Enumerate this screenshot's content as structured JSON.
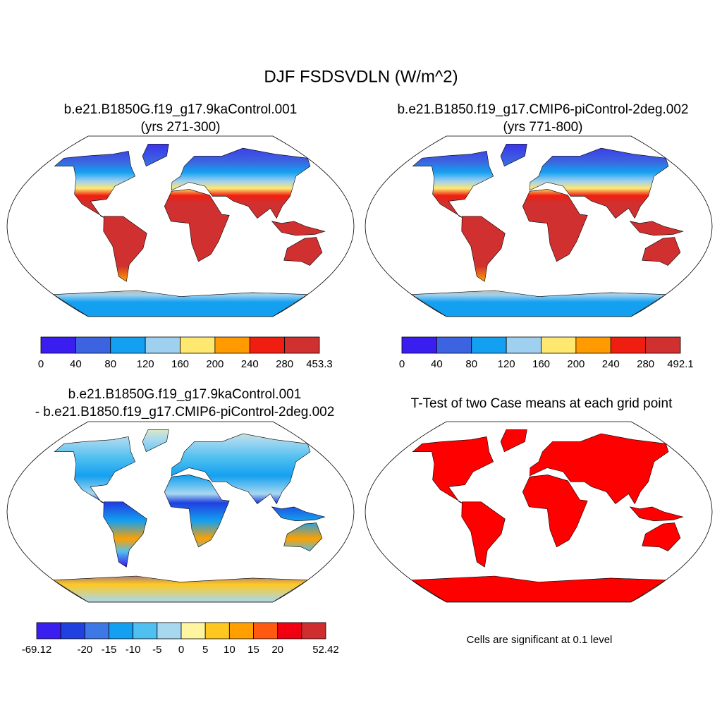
{
  "title": "DJF FSDSVDLN (W/m^2)",
  "panels": [
    {
      "title": [
        "b.e21.B1850G.f19_g17.9kaControl.001",
        "(yrs 271-300)"
      ],
      "colorbar": {
        "colors": [
          "#3a1ef0",
          "#3c64e0",
          "#14a0f0",
          "#a0d0f0",
          "#ffe870",
          "#ff9a00",
          "#f01e10",
          "#d03030"
        ],
        "labels": [
          0,
          40,
          80,
          120,
          160,
          200,
          240,
          280,
          453.3
        ]
      }
    },
    {
      "title": [
        "b.e21.B1850.f19_g17.CMIP6-piControl-2deg.002",
        "(yrs 771-800)"
      ],
      "colorbar": {
        "colors": [
          "#3a1ef0",
          "#3c64e0",
          "#14a0f0",
          "#a0d0f0",
          "#ffe870",
          "#ff9a00",
          "#f01e10",
          "#d03030"
        ],
        "labels": [
          0,
          40,
          80,
          120,
          160,
          200,
          240,
          280,
          492.1
        ]
      }
    },
    {
      "title": [
        "b.e21.B1850G.f19_g17.9kaControl.001",
        "- b.e21.B1850.f19_g17.CMIP6-piControl-2deg.002"
      ],
      "colorbar": {
        "colors": [
          "#3a1ef0",
          "#2040e0",
          "#3c78e6",
          "#14a0f0",
          "#50c0f0",
          "#a8d8f0",
          "#fff5a0",
          "#ffc820",
          "#ffa000",
          "#ff5a10",
          "#f00010",
          "#d02e2e"
        ],
        "labels": [
          -69.12,
          null,
          -20,
          -15,
          -10,
          -5,
          0,
          5,
          10,
          15,
          20,
          null,
          52.42
        ]
      }
    },
    {
      "title": [
        "T-Test of two Case means at each grid point"
      ],
      "mask_color": "#ff0000",
      "note": "Cells are significant at 0.1 level"
    }
  ]
}
